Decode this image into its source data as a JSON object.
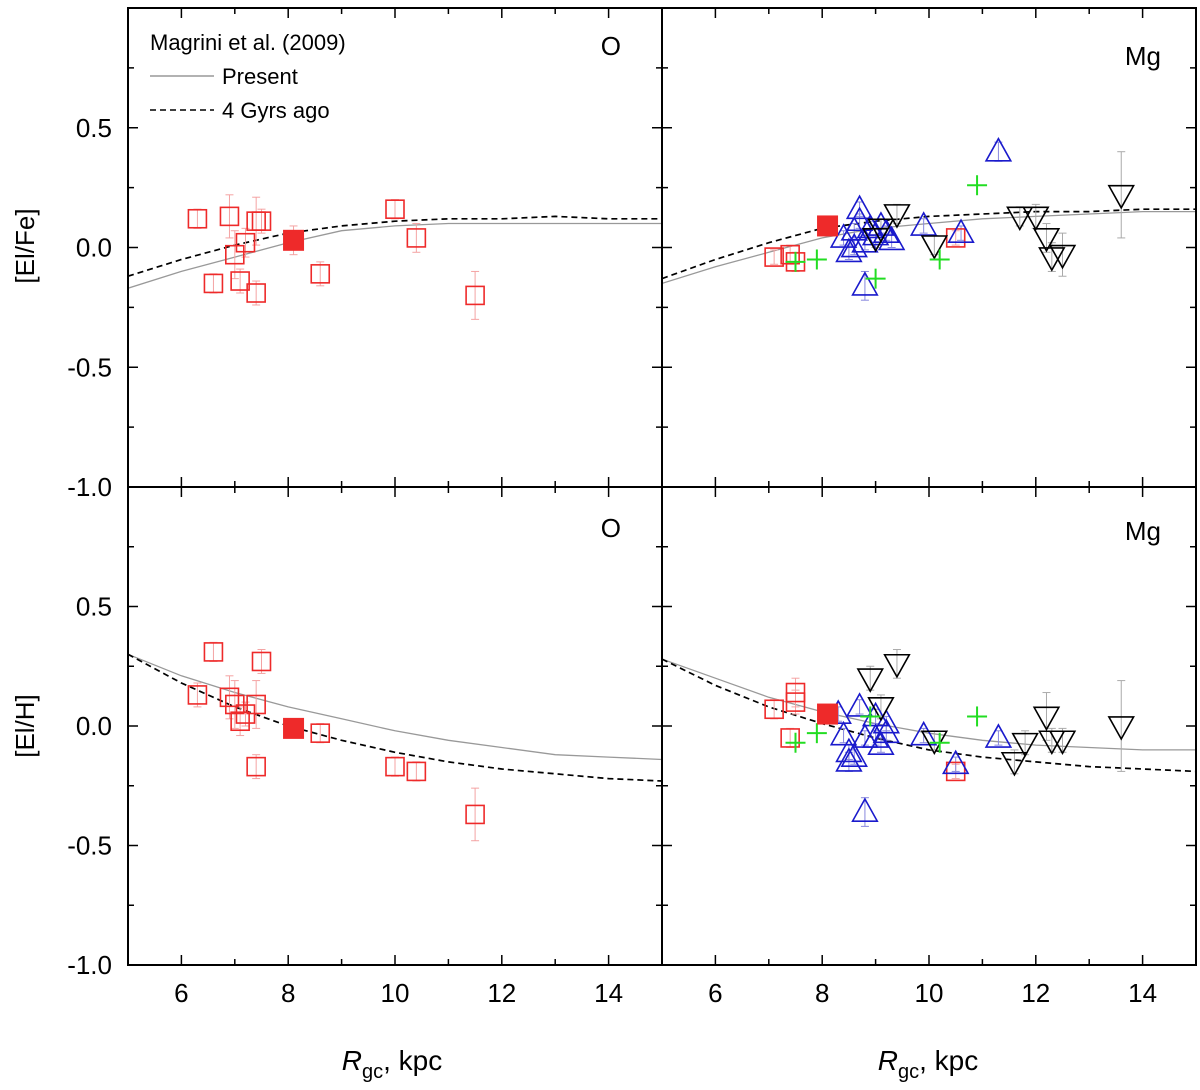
{
  "chart_data": {
    "type": "scatter",
    "shared": {
      "xlabel_italic": "R",
      "xlabel_sub": "gc",
      "xlabel_rest": ", kpc",
      "xlim": [
        5,
        15
      ],
      "xticks": [
        6,
        8,
        10,
        12,
        14
      ],
      "xtick_labels": [
        "6",
        "8",
        "10",
        "12",
        "14"
      ],
      "ylim": [
        -1.0,
        1.0
      ],
      "yticks": [
        0.5,
        0.0,
        -0.5,
        -1.0
      ],
      "ytick_labels": [
        "0.5",
        "0.0",
        "-0.5",
        "-1.0"
      ]
    },
    "legend": {
      "title": "Magrini et al. (2009)",
      "present_label": "Present",
      "past_label": "4 Gyrs ago"
    },
    "colors": {
      "red": "#ee2a2a",
      "red_error": "#f4a3a3",
      "blue": "#1a1acc",
      "blue_error": "#8888dd",
      "green": "#22dd22",
      "black": "#000000",
      "grey_error": "#aaaaaa",
      "present_line": "#999999",
      "past_line": "#000000"
    },
    "panels": [
      {
        "id": "O_Fe",
        "element": "O",
        "ylabel": "[El/Fe]",
        "present_curve": [
          [
            5,
            -0.17
          ],
          [
            6,
            -0.1
          ],
          [
            7,
            -0.04
          ],
          [
            8,
            0.02
          ],
          [
            9,
            0.07
          ],
          [
            10,
            0.09
          ],
          [
            11,
            0.1
          ],
          [
            12,
            0.1
          ],
          [
            13,
            0.1
          ],
          [
            14,
            0.1
          ],
          [
            15,
            0.1
          ]
        ],
        "past_curve": [
          [
            5,
            -0.12
          ],
          [
            6,
            -0.05
          ],
          [
            7,
            0.01
          ],
          [
            8,
            0.06
          ],
          [
            9,
            0.09
          ],
          [
            10,
            0.11
          ],
          [
            11,
            0.12
          ],
          [
            12,
            0.12
          ],
          [
            13,
            0.13
          ],
          [
            14,
            0.12
          ],
          [
            15,
            0.12
          ]
        ],
        "open_squares": [
          {
            "x": 6.3,
            "y": 0.12,
            "err": 0.04
          },
          {
            "x": 6.6,
            "y": -0.15,
            "err": 0.04
          },
          {
            "x": 6.9,
            "y": 0.13,
            "err": 0.09
          },
          {
            "x": 7.0,
            "y": -0.03,
            "err": 0.1
          },
          {
            "x": 7.1,
            "y": -0.14,
            "err": 0.05
          },
          {
            "x": 7.2,
            "y": 0.02,
            "err": 0.06
          },
          {
            "x": 7.4,
            "y": -0.19,
            "err": 0.05
          },
          {
            "x": 7.4,
            "y": 0.11,
            "err": 0.1
          },
          {
            "x": 7.5,
            "y": 0.11,
            "err": 0.05
          },
          {
            "x": 8.6,
            "y": -0.11,
            "err": 0.05
          },
          {
            "x": 10.0,
            "y": 0.16,
            "err": 0.04
          },
          {
            "x": 10.4,
            "y": 0.04,
            "err": 0.06
          },
          {
            "x": 11.5,
            "y": -0.2,
            "err": 0.1
          }
        ],
        "filled_squares": [
          {
            "x": 8.1,
            "y": 0.03,
            "err": 0.06
          }
        ],
        "plus": [],
        "up_triangles": [],
        "down_triangles": []
      },
      {
        "id": "Mg_Fe",
        "element": "Mg",
        "ylabel": "",
        "present_curve": [
          [
            5,
            -0.15
          ],
          [
            6,
            -0.08
          ],
          [
            7,
            -0.02
          ],
          [
            8,
            0.04
          ],
          [
            9,
            0.08
          ],
          [
            10,
            0.1
          ],
          [
            11,
            0.12
          ],
          [
            12,
            0.13
          ],
          [
            13,
            0.14
          ],
          [
            14,
            0.15
          ],
          [
            15,
            0.15
          ]
        ],
        "past_curve": [
          [
            5,
            -0.13
          ],
          [
            6,
            -0.05
          ],
          [
            7,
            0.02
          ],
          [
            8,
            0.08
          ],
          [
            9,
            0.11
          ],
          [
            10,
            0.13
          ],
          [
            11,
            0.14
          ],
          [
            12,
            0.15
          ],
          [
            13,
            0.15
          ],
          [
            14,
            0.16
          ],
          [
            15,
            0.16
          ]
        ],
        "open_squares": [
          {
            "x": 7.1,
            "y": -0.04,
            "err": 0.03
          },
          {
            "x": 7.4,
            "y": -0.03,
            "err": 0.04
          },
          {
            "x": 7.5,
            "y": -0.06,
            "err": 0.04
          },
          {
            "x": 10.5,
            "y": 0.04,
            "err": 0.03
          }
        ],
        "filled_squares": [
          {
            "x": 8.1,
            "y": 0.09,
            "err": 0.04
          }
        ],
        "plus": [
          {
            "x": 7.5,
            "y": -0.06
          },
          {
            "x": 7.9,
            "y": -0.05
          },
          {
            "x": 9.0,
            "y": -0.13
          },
          {
            "x": 10.2,
            "y": -0.05
          },
          {
            "x": 10.9,
            "y": 0.26
          }
        ],
        "up_triangles": [
          {
            "x": 8.4,
            "y": 0.04,
            "err": 0.03
          },
          {
            "x": 8.5,
            "y": -0.02,
            "err": 0.03
          },
          {
            "x": 8.6,
            "y": 0.07,
            "err": 0.03
          },
          {
            "x": 8.6,
            "y": 0.0,
            "err": 0.03
          },
          {
            "x": 8.7,
            "y": 0.16,
            "err": 0.03
          },
          {
            "x": 8.7,
            "y": 0.11,
            "err": 0.03
          },
          {
            "x": 8.8,
            "y": 0.02,
            "err": 0.03
          },
          {
            "x": 8.8,
            "y": -0.16,
            "err": 0.06
          },
          {
            "x": 8.9,
            "y": 0.08,
            "err": 0.03
          },
          {
            "x": 9.0,
            "y": 0.05,
            "err": 0.03
          },
          {
            "x": 9.1,
            "y": 0.09,
            "err": 0.03
          },
          {
            "x": 9.2,
            "y": 0.06,
            "err": 0.03
          },
          {
            "x": 9.3,
            "y": 0.03,
            "err": 0.03
          },
          {
            "x": 9.9,
            "y": 0.09,
            "err": 0.03
          },
          {
            "x": 10.6,
            "y": 0.06,
            "err": 0.03
          },
          {
            "x": 11.3,
            "y": 0.4,
            "err": 0.04
          }
        ],
        "down_triangles": [
          {
            "x": 9.0,
            "y": 0.04,
            "err": 0.04
          },
          {
            "x": 9.1,
            "y": 0.08,
            "err": 0.04
          },
          {
            "x": 9.4,
            "y": 0.14,
            "err": 0.04
          },
          {
            "x": 10.1,
            "y": 0.01,
            "err": 0.04
          },
          {
            "x": 11.7,
            "y": 0.13,
            "err": 0.04
          },
          {
            "x": 12.0,
            "y": 0.13,
            "err": 0.05
          },
          {
            "x": 12.2,
            "y": 0.04,
            "err": 0.06
          },
          {
            "x": 12.3,
            "y": -0.04,
            "err": 0.06
          },
          {
            "x": 12.5,
            "y": -0.03,
            "err": 0.09
          },
          {
            "x": 13.6,
            "y": 0.22,
            "err": 0.18
          }
        ]
      },
      {
        "id": "O_H",
        "element": "O",
        "ylabel": "[El/H]",
        "present_curve": [
          [
            5,
            0.3
          ],
          [
            6,
            0.21
          ],
          [
            7,
            0.14
          ],
          [
            8,
            0.08
          ],
          [
            9,
            0.03
          ],
          [
            10,
            -0.02
          ],
          [
            11,
            -0.06
          ],
          [
            12,
            -0.09
          ],
          [
            13,
            -0.12
          ],
          [
            14,
            -0.13
          ],
          [
            15,
            -0.14
          ]
        ],
        "past_curve": [
          [
            5,
            0.3
          ],
          [
            6,
            0.18
          ],
          [
            7,
            0.08
          ],
          [
            8,
            0.0
          ],
          [
            9,
            -0.06
          ],
          [
            10,
            -0.11
          ],
          [
            11,
            -0.15
          ],
          [
            12,
            -0.18
          ],
          [
            13,
            -0.2
          ],
          [
            14,
            -0.22
          ],
          [
            15,
            -0.23
          ]
        ],
        "open_squares": [
          {
            "x": 6.3,
            "y": 0.13,
            "err": 0.05
          },
          {
            "x": 6.6,
            "y": 0.31,
            "err": 0.04
          },
          {
            "x": 6.9,
            "y": 0.12,
            "err": 0.09
          },
          {
            "x": 7.0,
            "y": 0.09,
            "err": 0.1
          },
          {
            "x": 7.1,
            "y": 0.02,
            "err": 0.06
          },
          {
            "x": 7.2,
            "y": 0.05,
            "err": 0.05
          },
          {
            "x": 7.4,
            "y": -0.17,
            "err": 0.05
          },
          {
            "x": 7.4,
            "y": 0.09,
            "err": 0.1
          },
          {
            "x": 7.5,
            "y": 0.27,
            "err": 0.05
          },
          {
            "x": 8.6,
            "y": -0.03,
            "err": 0.04
          },
          {
            "x": 10.0,
            "y": -0.17,
            "err": 0.04
          },
          {
            "x": 10.4,
            "y": -0.19,
            "err": 0.04
          },
          {
            "x": 11.5,
            "y": -0.37,
            "err": 0.11
          }
        ],
        "filled_squares": [
          {
            "x": 8.1,
            "y": -0.01,
            "err": 0.03
          }
        ],
        "plus": [],
        "up_triangles": [],
        "down_triangles": []
      },
      {
        "id": "Mg_H",
        "element": "Mg",
        "ylabel": "",
        "present_curve": [
          [
            5,
            0.28
          ],
          [
            6,
            0.2
          ],
          [
            7,
            0.12
          ],
          [
            8,
            0.06
          ],
          [
            9,
            0.01
          ],
          [
            10,
            -0.03
          ],
          [
            11,
            -0.06
          ],
          [
            12,
            -0.08
          ],
          [
            13,
            -0.09
          ],
          [
            14,
            -0.1
          ],
          [
            15,
            -0.1
          ]
        ],
        "past_curve": [
          [
            5,
            0.28
          ],
          [
            6,
            0.17
          ],
          [
            7,
            0.08
          ],
          [
            8,
            0.01
          ],
          [
            9,
            -0.05
          ],
          [
            10,
            -0.1
          ],
          [
            11,
            -0.13
          ],
          [
            12,
            -0.15
          ],
          [
            13,
            -0.17
          ],
          [
            14,
            -0.18
          ],
          [
            15,
            -0.19
          ]
        ],
        "open_squares": [
          {
            "x": 7.1,
            "y": 0.07,
            "err": 0.04
          },
          {
            "x": 7.4,
            "y": -0.05,
            "err": 0.04
          },
          {
            "x": 7.5,
            "y": 0.14,
            "err": 0.06
          },
          {
            "x": 7.5,
            "y": 0.1,
            "err": 0.05
          },
          {
            "x": 10.5,
            "y": -0.19,
            "err": 0.03
          }
        ],
        "filled_squares": [
          {
            "x": 8.1,
            "y": 0.05,
            "err": 0.04
          }
        ],
        "plus": [
          {
            "x": 7.5,
            "y": -0.07
          },
          {
            "x": 7.9,
            "y": -0.03
          },
          {
            "x": 8.9,
            "y": 0.04
          },
          {
            "x": 10.2,
            "y": -0.07
          },
          {
            "x": 10.9,
            "y": 0.04
          }
        ],
        "up_triangles": [
          {
            "x": 8.3,
            "y": 0.05,
            "err": 0.03
          },
          {
            "x": 8.4,
            "y": -0.04,
            "err": 0.03
          },
          {
            "x": 8.5,
            "y": -0.11,
            "err": 0.03
          },
          {
            "x": 8.5,
            "y": -0.15,
            "err": 0.04
          },
          {
            "x": 8.6,
            "y": -0.13,
            "err": 0.03
          },
          {
            "x": 8.7,
            "y": 0.08,
            "err": 0.03
          },
          {
            "x": 8.8,
            "y": -0.05,
            "err": 0.03
          },
          {
            "x": 8.8,
            "y": -0.36,
            "err": 0.06
          },
          {
            "x": 9.0,
            "y": 0.04,
            "err": 0.03
          },
          {
            "x": 9.0,
            "y": -0.05,
            "err": 0.03
          },
          {
            "x": 9.1,
            "y": -0.08,
            "err": 0.03
          },
          {
            "x": 9.2,
            "y": -0.03,
            "err": 0.03
          },
          {
            "x": 9.2,
            "y": 0.01,
            "err": 0.03
          },
          {
            "x": 9.9,
            "y": -0.04,
            "err": 0.03
          },
          {
            "x": 10.5,
            "y": -0.16,
            "err": 0.03
          },
          {
            "x": 11.3,
            "y": -0.05,
            "err": 0.03
          }
        ],
        "down_triangles": [
          {
            "x": 8.9,
            "y": 0.2,
            "err": 0.05
          },
          {
            "x": 9.1,
            "y": 0.08,
            "err": 0.05
          },
          {
            "x": 9.4,
            "y": 0.26,
            "err": 0.06
          },
          {
            "x": 10.1,
            "y": -0.06,
            "err": 0.04
          },
          {
            "x": 11.6,
            "y": -0.15,
            "err": 0.05
          },
          {
            "x": 11.8,
            "y": -0.07,
            "err": 0.05
          },
          {
            "x": 12.2,
            "y": 0.04,
            "err": 0.1
          },
          {
            "x": 12.3,
            "y": -0.06,
            "err": 0.05
          },
          {
            "x": 12.5,
            "y": -0.06,
            "err": 0.05
          },
          {
            "x": 13.6,
            "y": 0.0,
            "err": 0.19
          }
        ]
      }
    ]
  }
}
